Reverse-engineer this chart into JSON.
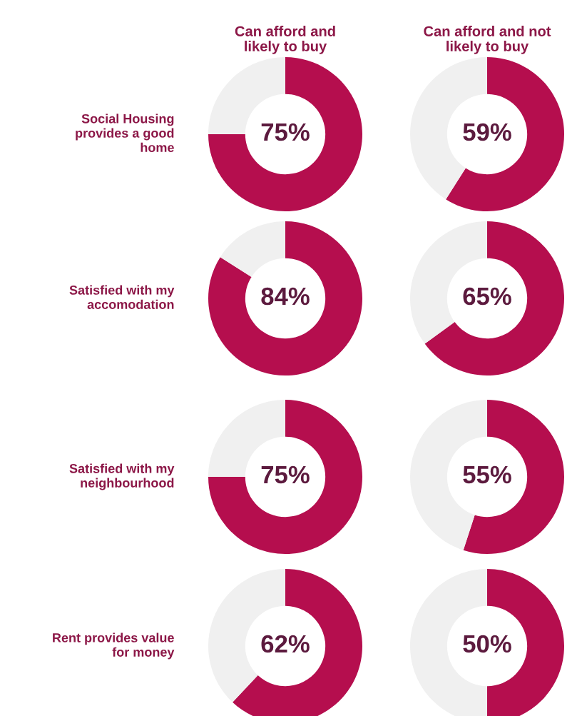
{
  "chart_data": [
    {
      "type": "donut",
      "title": "Can afford and\nlikely to buy",
      "ylabel": "Social Housing\nprovides a good\nhome",
      "categories": [
        null,
        null
      ],
      "values": [
        75,
        25
      ],
      "colors": [
        "#b50e4e",
        "#f0f0f0"
      ],
      "value_labels": [
        "75%",
        null
      ]
    },
    {
      "type": "donut",
      "title": "Can afford and not\nlikely to buy",
      "categories": [
        null,
        null
      ],
      "values": [
        59,
        41
      ],
      "colors": [
        "#b50e4e",
        "#f0f0f0"
      ],
      "value_labels": [
        "59%",
        null
      ]
    },
    {
      "type": "donut",
      "ylabel": "Satisfied with my\naccomodation",
      "categories": [
        null,
        null
      ],
      "values": [
        84,
        16
      ],
      "colors": [
        "#b50e4e",
        "#f0f0f0"
      ],
      "value_labels": [
        "84%",
        null
      ]
    },
    {
      "type": "donut",
      "categories": [
        null,
        null
      ],
      "values": [
        65,
        35
      ],
      "colors": [
        "#b50e4e",
        "#f0f0f0"
      ],
      "value_labels": [
        "65%",
        null
      ]
    },
    {
      "type": "donut",
      "ylabel": "Satisfied with my\nneighbourhood",
      "categories": [
        null,
        null
      ],
      "values": [
        75,
        25
      ],
      "colors": [
        "#b50e4e",
        "#f0f0f0"
      ],
      "value_labels": [
        "75%",
        null
      ]
    },
    {
      "type": "donut",
      "categories": [
        null,
        null
      ],
      "values": [
        55,
        45
      ],
      "colors": [
        "#b50e4e",
        "#f0f0f0"
      ],
      "value_labels": [
        "55%",
        null
      ]
    },
    {
      "type": "donut",
      "ylabel": "Rent provides value\nfor money",
      "categories": [
        null,
        null
      ],
      "values": [
        62,
        38
      ],
      "colors": [
        "#b50e4e",
        "#f0f0f0"
      ],
      "value_labels": [
        "62%",
        null
      ]
    },
    {
      "type": "donut",
      "categories": [
        null,
        null
      ],
      "values": [
        50,
        50
      ],
      "colors": [
        "#b50e4e",
        "#f0f0f0"
      ],
      "value_labels": [
        "50%",
        null
      ]
    }
  ]
}
